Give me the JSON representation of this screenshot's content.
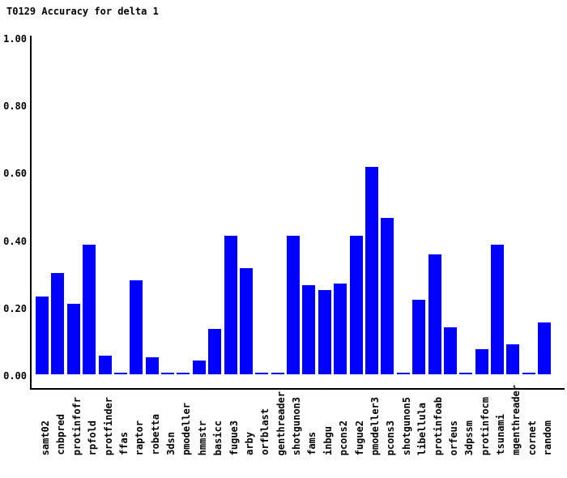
{
  "window": {
    "background": "#ffffff"
  },
  "chart_data": {
    "type": "bar",
    "title": "T0129 Accuracy for delta 1",
    "xlabel": "",
    "ylabel": "",
    "ylim": [
      0,
      1
    ],
    "grid": false,
    "legend_position": "none",
    "bar_color": "#0000ff",
    "axis_color": "#000000",
    "text_color": "#000000",
    "yticks": [
      {
        "value": 0.0,
        "label": "0.00"
      },
      {
        "value": 0.2,
        "label": "0.20"
      },
      {
        "value": 0.4,
        "label": "0.40"
      },
      {
        "value": 0.6,
        "label": "0.60"
      },
      {
        "value": 0.8,
        "label": "0.80"
      },
      {
        "value": 1.0,
        "label": "1.00"
      }
    ],
    "categories": [
      "samt02",
      "cnbpred",
      "protinfofr",
      "rpfold",
      "protfinder",
      "ffas",
      "raptor",
      "robetta",
      "3dsn",
      "pmodeller",
      "hmmstr",
      "basicc",
      "fugue3",
      "arby",
      "orfblast",
      "genthreader",
      "shotgunon3",
      "fams",
      "inbgu",
      "pcons2",
      "fugue2",
      "pmodeller3",
      "pcons3",
      "shotgunon5",
      "libellula",
      "protinfoab",
      "orfeus",
      "3dpssm",
      "protinfocm",
      "tsunami",
      "mgenthreader",
      "cornet",
      "random"
    ],
    "values": [
      0.23,
      0.3,
      0.21,
      0.385,
      0.055,
      0.005,
      0.28,
      0.05,
      0.005,
      0.005,
      0.04,
      0.135,
      0.41,
      0.315,
      0.005,
      0.005,
      0.41,
      0.265,
      0.25,
      0.27,
      0.41,
      0.615,
      0.465,
      0.005,
      0.22,
      0.355,
      0.14,
      0.005,
      0.075,
      0.385,
      0.09,
      0.005,
      0.155
    ]
  }
}
